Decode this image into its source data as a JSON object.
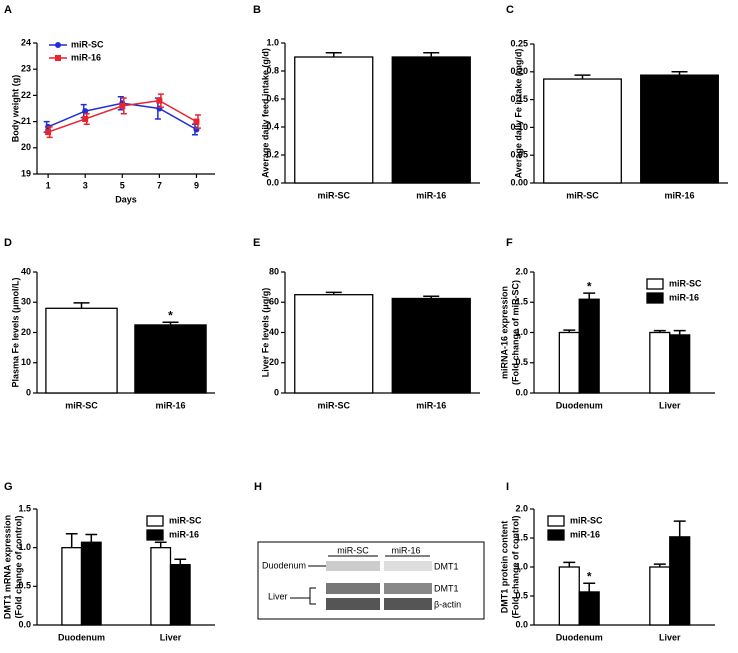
{
  "chart_data": [
    {
      "panel": "A",
      "type": "line",
      "xlabel": "Days",
      "ylabel": [
        "Body weight (g)"
      ],
      "x": [
        1,
        3,
        5,
        7,
        9
      ],
      "xlim": [
        0.4,
        10
      ],
      "xticks": [
        1,
        3,
        5,
        7,
        9
      ],
      "ylim": [
        19,
        24
      ],
      "yticks": [
        19,
        20,
        21,
        22,
        23,
        24
      ],
      "legend": "upper left",
      "series": [
        {
          "name": "miR-SC",
          "color": "#1f2fd6",
          "marker": "circle",
          "values": [
            20.8,
            21.4,
            21.7,
            21.5,
            20.7
          ],
          "errors": [
            0.2,
            0.25,
            0.25,
            0.4,
            0.2
          ]
        },
        {
          "name": "miR-16",
          "color": "#e8242c",
          "marker": "square",
          "values": [
            20.6,
            21.1,
            21.6,
            21.8,
            21.0
          ],
          "errors": [
            0.2,
            0.2,
            0.3,
            0.25,
            0.25
          ]
        }
      ]
    },
    {
      "panel": "B",
      "type": "bar",
      "ylabel": [
        "Average daily feed intake (g/d)"
      ],
      "categories": [
        "miR-SC",
        "miR-16"
      ],
      "values": [
        0.9,
        0.9
      ],
      "errors": [
        0.03,
        0.03
      ],
      "colors": [
        "#ffffff",
        "#000000"
      ],
      "ylim": [
        0,
        1.0
      ],
      "yticks": [
        {
          "value": 0,
          "label": "0.0"
        },
        0.2,
        0.4,
        0.6,
        0.8,
        {
          "value": 1,
          "label": "1.0"
        }
      ]
    },
    {
      "panel": "C",
      "type": "bar",
      "ylabel": [
        "Average daily Fe intake (mg/d)"
      ],
      "categories": [
        "miR-SC",
        "miR-16"
      ],
      "values": [
        0.187,
        0.194
      ],
      "errors": [
        0.007,
        0.006
      ],
      "colors": [
        "#ffffff",
        "#000000"
      ],
      "ylim": [
        0,
        0.25
      ],
      "yticks": [
        {
          "value": 0,
          "label": "0.00"
        },
        0.05,
        {
          "value": 0.1,
          "label": "0.10"
        },
        0.15,
        {
          "value": 0.2,
          "label": "0.20"
        },
        0.25
      ]
    },
    {
      "panel": "D",
      "type": "bar",
      "ylabel": [
        "Plasma Fe levels (μmol/L)"
      ],
      "categories": [
        "miR-SC",
        "miR-16"
      ],
      "values": [
        28,
        22.5
      ],
      "errors": [
        1.8,
        0.9
      ],
      "colors": [
        "#ffffff",
        "#000000"
      ],
      "ylim": [
        0,
        40
      ],
      "yticks": [
        0,
        10,
        20,
        30,
        40
      ],
      "annotations": [
        {
          "text": "*",
          "category": "miR-16"
        }
      ]
    },
    {
      "panel": "E",
      "type": "bar",
      "ylabel": [
        "Liver Fe levels (μg/g)"
      ],
      "categories": [
        "miR-SC",
        "miR-16"
      ],
      "values": [
        65,
        62.5
      ],
      "errors": [
        1.5,
        1.5
      ],
      "colors": [
        "#ffffff",
        "#000000"
      ],
      "ylim": [
        0,
        80
      ],
      "yticks": [
        0,
        20,
        40,
        60,
        80
      ]
    },
    {
      "panel": "F",
      "type": "bar",
      "ylabel": [
        "miRNA-16 expression",
        "(Fold change of miR-SC)"
      ],
      "categories": [
        "Duodenum",
        "Liver"
      ],
      "legend": "upper right",
      "series": [
        {
          "name": "miR-SC",
          "color": "#ffffff",
          "values": [
            1.0,
            1.0
          ],
          "errors": [
            0.04,
            0.03
          ]
        },
        {
          "name": "miR-16",
          "color": "#000000",
          "values": [
            1.55,
            0.96
          ],
          "errors": [
            0.1,
            0.07
          ]
        }
      ],
      "ylim": [
        0,
        2.0
      ],
      "yticks": [
        {
          "value": 0,
          "label": "0.0"
        },
        0.5,
        {
          "value": 1,
          "label": "1.0"
        },
        1.5,
        {
          "value": 2,
          "label": "2.0"
        }
      ],
      "annotations": [
        {
          "text": "*",
          "category": "Duodenum",
          "series": "miR-16"
        }
      ]
    },
    {
      "panel": "G",
      "type": "bar",
      "ylabel": [
        "DMT1 mRNA expression",
        "(Fold change of control)"
      ],
      "categories": [
        "Duodenum",
        "Liver"
      ],
      "legend": "upper right",
      "series": [
        {
          "name": "miR-SC",
          "color": "#ffffff",
          "values": [
            1.0,
            1.0
          ],
          "errors": [
            0.18,
            0.07
          ]
        },
        {
          "name": "miR-16",
          "color": "#000000",
          "values": [
            1.07,
            0.78
          ],
          "errors": [
            0.1,
            0.07
          ]
        }
      ],
      "ylim": [
        0,
        1.5
      ],
      "yticks": [
        {
          "value": 0,
          "label": "0.0"
        },
        0.5,
        {
          "value": 1,
          "label": "1.0"
        },
        1.5
      ]
    },
    {
      "panel": "I",
      "type": "bar",
      "ylabel": [
        "DMT1 protein content",
        "(Fold change of control)"
      ],
      "categories": [
        "Duodenum",
        "Liver"
      ],
      "legend": "upper left",
      "series": [
        {
          "name": "miR-SC",
          "color": "#ffffff",
          "values": [
            1.0,
            1.0
          ],
          "errors": [
            0.08,
            0.05
          ]
        },
        {
          "name": "miR-16",
          "color": "#000000",
          "values": [
            0.57,
            1.52
          ],
          "errors": [
            0.15,
            0.27
          ]
        }
      ],
      "ylim": [
        0,
        2.0
      ],
      "yticks": [
        {
          "value": 0,
          "label": "0.0"
        },
        0.5,
        {
          "value": 1,
          "label": "1.0"
        },
        1.5,
        {
          "value": 2,
          "label": "2.0"
        }
      ],
      "annotations": [
        {
          "text": "*",
          "category": "Duodenum",
          "series": "miR-16"
        }
      ]
    }
  ],
  "blot": {
    "panel": "H",
    "groups": [
      "miR-SC",
      "miR-16"
    ],
    "tissues": [
      "Duodenum",
      "Liver"
    ],
    "bands": [
      "DMT1",
      "DMT1",
      "β-actin"
    ]
  }
}
